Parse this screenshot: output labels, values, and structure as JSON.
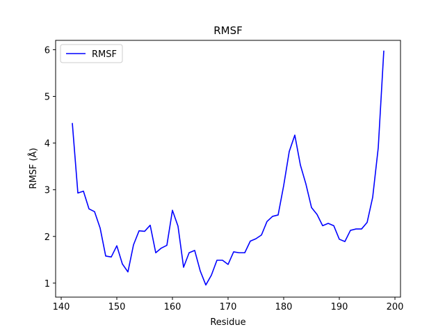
{
  "chart_data": {
    "type": "line",
    "title": "RMSF",
    "xlabel": "Residue",
    "ylabel": "RMSF (Å)",
    "xlim": [
      139,
      201
    ],
    "ylim": [
      0.7,
      6.2
    ],
    "xticks": [
      140,
      150,
      160,
      170,
      180,
      190,
      200
    ],
    "yticks": [
      1,
      2,
      3,
      4,
      5,
      6
    ],
    "grid": false,
    "legend_position": "top-left",
    "series": [
      {
        "name": "RMSF",
        "color": "#0000ff",
        "x": [
          142,
          143,
          144,
          145,
          146,
          147,
          148,
          149,
          150,
          151,
          152,
          153,
          154,
          155,
          156,
          157,
          158,
          159,
          160,
          161,
          162,
          163,
          164,
          165,
          166,
          167,
          168,
          169,
          170,
          171,
          172,
          173,
          174,
          175,
          176,
          177,
          178,
          179,
          180,
          181,
          182,
          183,
          184,
          185,
          186,
          187,
          188,
          189,
          190,
          191,
          192,
          193,
          194,
          195,
          196,
          197,
          198
        ],
        "y": [
          4.43,
          2.93,
          2.97,
          2.59,
          2.53,
          2.18,
          1.58,
          1.56,
          1.8,
          1.41,
          1.24,
          1.82,
          2.12,
          2.11,
          2.24,
          1.65,
          1.75,
          1.81,
          2.56,
          2.22,
          1.34,
          1.65,
          1.7,
          1.26,
          0.96,
          1.17,
          1.49,
          1.49,
          1.4,
          1.67,
          1.65,
          1.65,
          1.9,
          1.95,
          2.03,
          2.32,
          2.43,
          2.46,
          3.09,
          3.82,
          4.17,
          3.53,
          3.12,
          2.62,
          2.47,
          2.23,
          2.28,
          2.23,
          1.94,
          1.89,
          2.13,
          2.16,
          2.16,
          2.3,
          2.84,
          3.9,
          5.98
        ]
      }
    ]
  }
}
